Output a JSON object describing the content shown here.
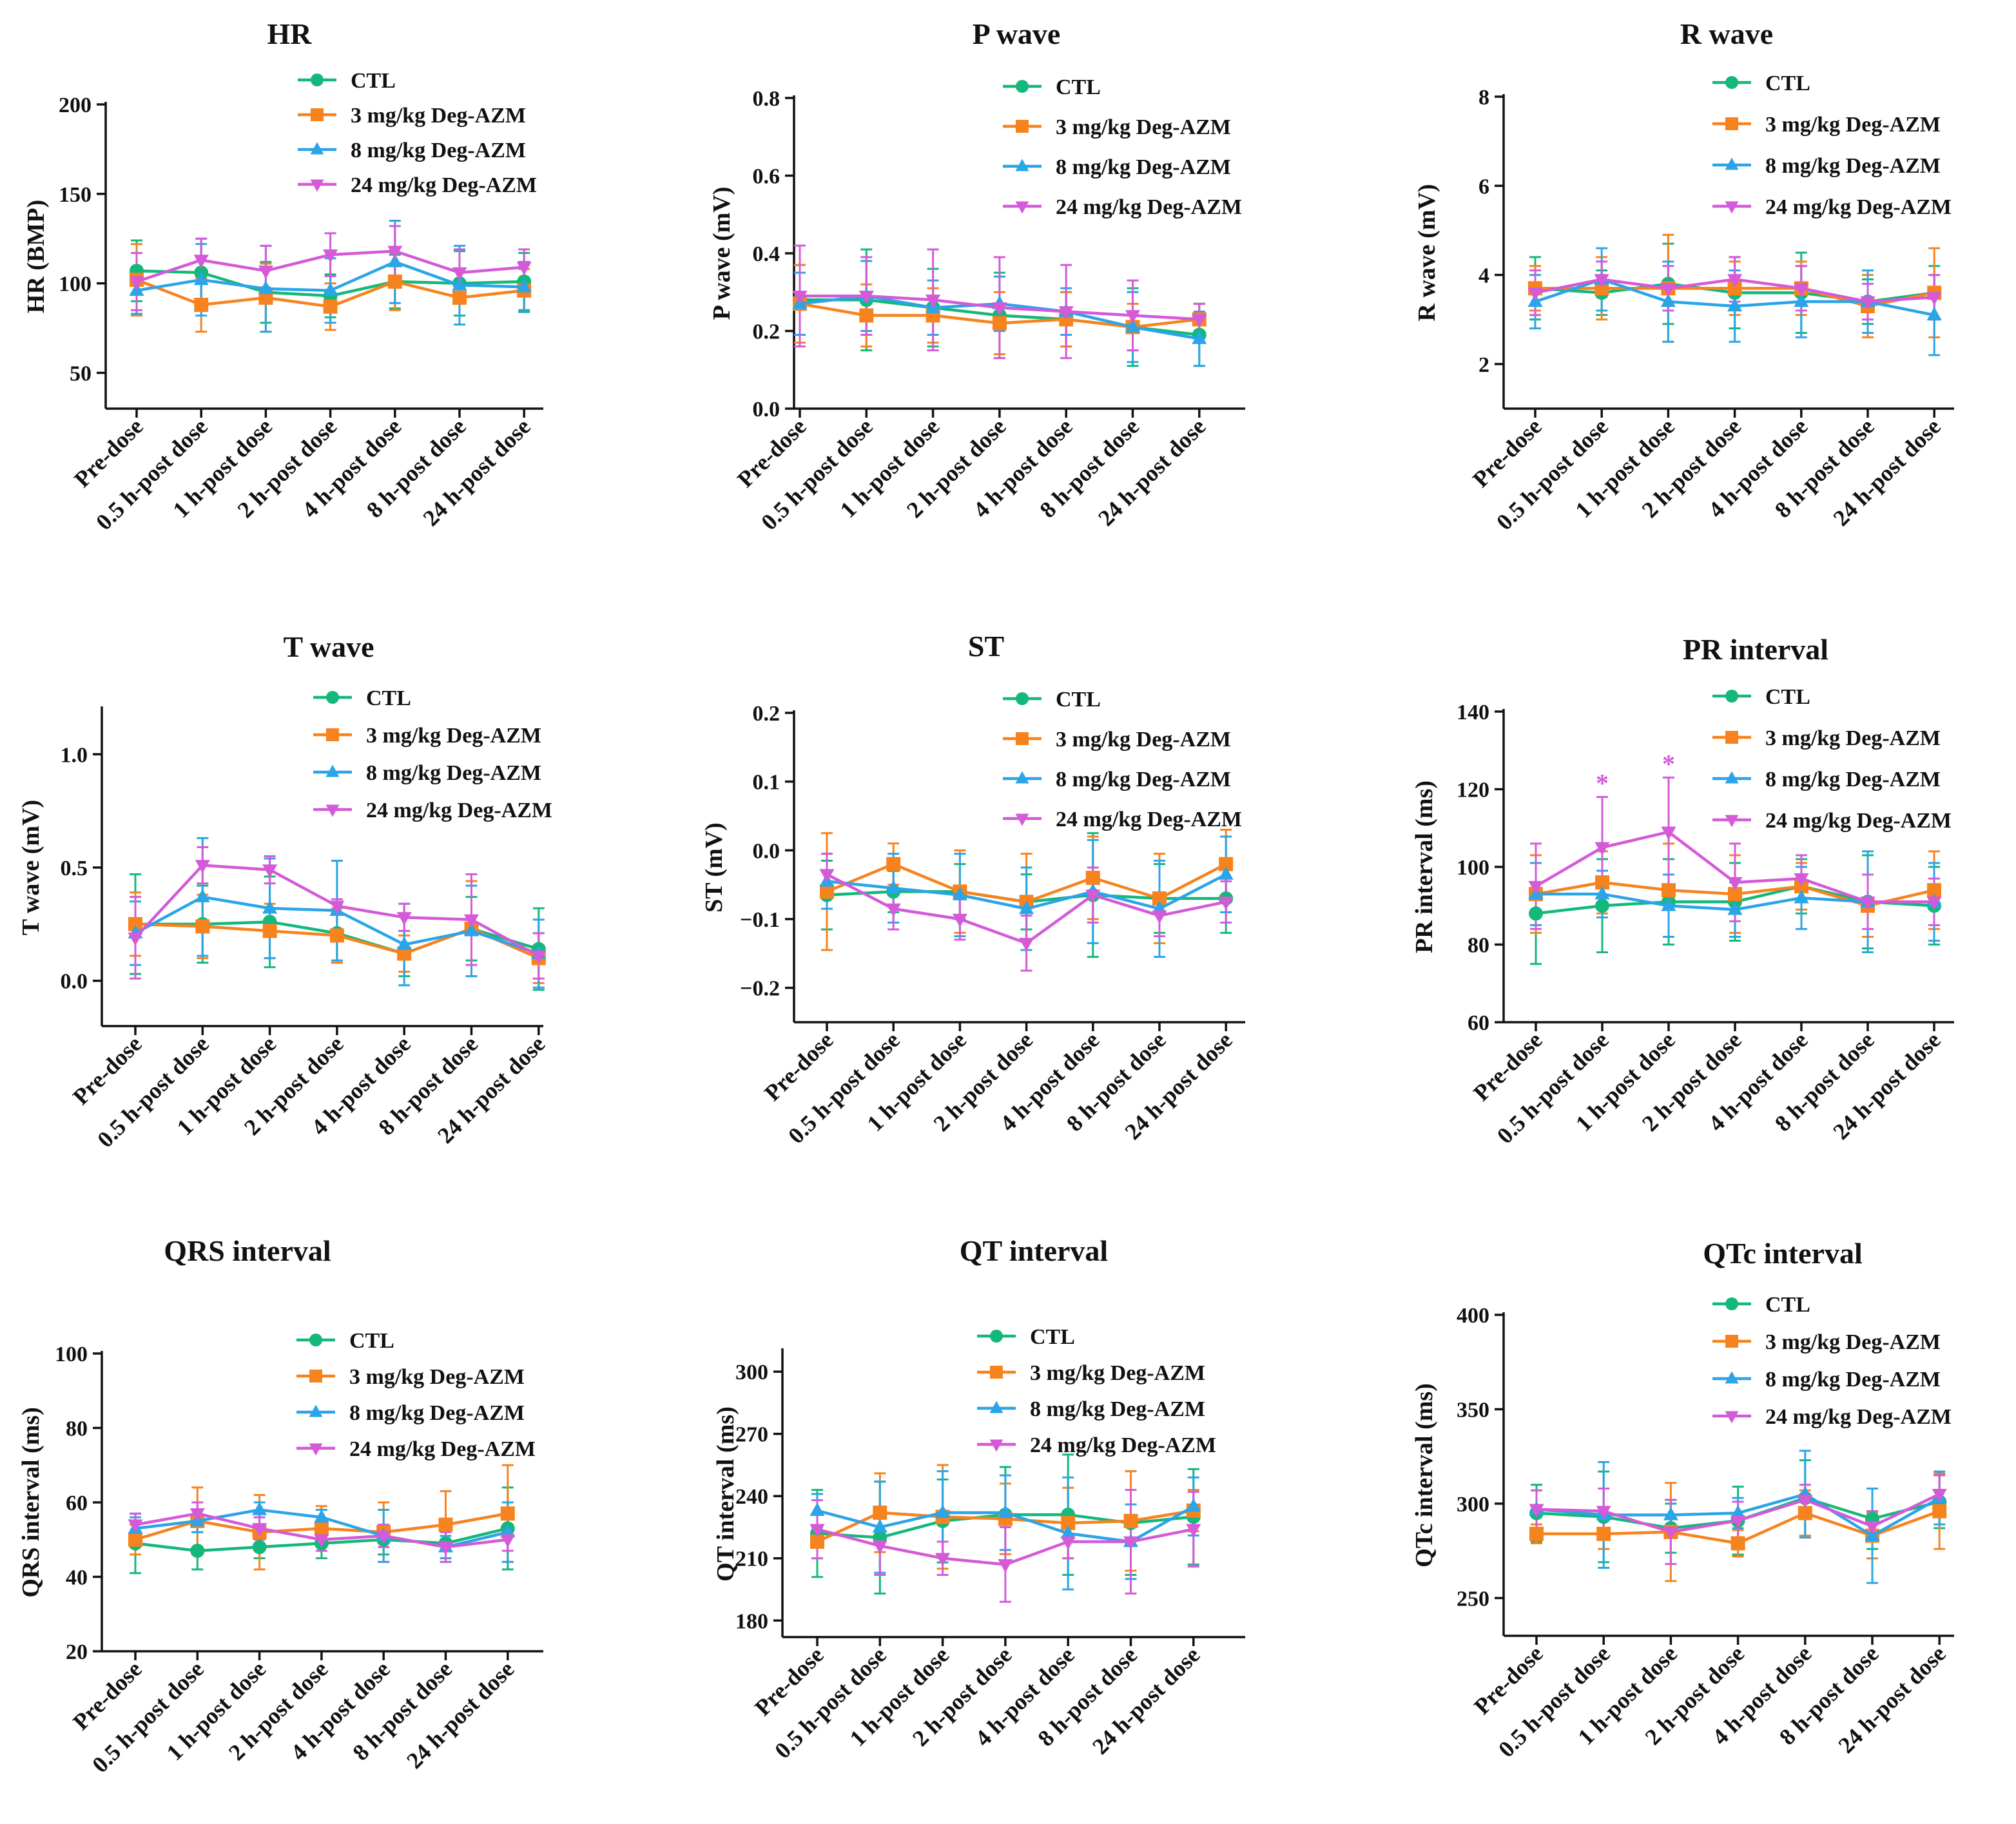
{
  "figure": {
    "x_categories": [
      "Pre-dose",
      "0.5 h-post dose",
      "1 h-post dose",
      "2 h-post dose",
      "4 h-post dose",
      "8 h-post dose",
      "24 h-post dose"
    ],
    "series_styles": [
      {
        "name": "CTL",
        "color": "#14b87a",
        "marker": "circle"
      },
      {
        "name": "3 mg/kg Deg-AZM",
        "color": "#f7831e",
        "marker": "square"
      },
      {
        "name": "8 mg/kg Deg-AZM",
        "color": "#2ba4e8",
        "marker": "triangle-up"
      },
      {
        "name": "24 mg/kg Deg-AZM",
        "color": "#d45ad8",
        "marker": "triangle-down"
      }
    ]
  },
  "chart_data": [
    {
      "type": "line",
      "title": "HR",
      "ylabel": "HR (BMP)",
      "ylim": [
        30,
        200
      ],
      "yticks": [
        50,
        100,
        150,
        200
      ],
      "yticklabels": [
        "50",
        "100",
        "150",
        "200"
      ],
      "series": [
        {
          "name": "CTL",
          "values": [
            107,
            106,
            95,
            93,
            101,
            100,
            101
          ],
          "errors": [
            17,
            19,
            17,
            12,
            15,
            18,
            16
          ]
        },
        {
          "name": "3 mg/kg Deg-AZM",
          "values": [
            102,
            88,
            92,
            87,
            101,
            92,
            96
          ],
          "errors": [
            20,
            15,
            19,
            13,
            16,
            15,
            12
          ]
        },
        {
          "name": "8 mg/kg Deg-AZM",
          "values": [
            96,
            102,
            97,
            96,
            112,
            99,
            98
          ],
          "errors": [
            13,
            20,
            24,
            18,
            23,
            22,
            14
          ]
        },
        {
          "name": "24 mg/kg Deg-AZM",
          "values": [
            101,
            113,
            107,
            116,
            118,
            106,
            109
          ],
          "errors": [
            16,
            12,
            14,
            12,
            14,
            13,
            10
          ]
        }
      ]
    },
    {
      "type": "line",
      "title": "P wave",
      "ylabel": "P wave (mV)",
      "ylim": [
        0,
        0.8
      ],
      "yticks": [
        0,
        0.2,
        0.4,
        0.6,
        0.8
      ],
      "yticklabels": [
        "0.0",
        "0.2",
        "0.4",
        "0.6",
        "0.8"
      ],
      "series": [
        {
          "name": "CTL",
          "values": [
            0.28,
            0.28,
            0.26,
            0.24,
            0.23,
            0.21,
            0.19
          ],
          "errors": [
            0.09,
            0.13,
            0.1,
            0.11,
            0.07,
            0.1,
            0.08
          ]
        },
        {
          "name": "3 mg/kg Deg-AZM",
          "values": [
            0.27,
            0.24,
            0.24,
            0.22,
            0.23,
            0.21,
            0.23
          ],
          "errors": [
            0.1,
            0.08,
            0.07,
            0.08,
            0.07,
            0.06,
            0.04
          ]
        },
        {
          "name": "8 mg/kg Deg-AZM",
          "values": [
            0.27,
            0.29,
            0.26,
            0.27,
            0.25,
            0.21,
            0.18
          ],
          "errors": [
            0.08,
            0.09,
            0.07,
            0.07,
            0.06,
            0.09,
            0.07
          ]
        },
        {
          "name": "24 mg/kg Deg-AZM",
          "values": [
            0.29,
            0.29,
            0.28,
            0.26,
            0.25,
            0.24,
            0.23
          ],
          "errors": [
            0.13,
            0.1,
            0.13,
            0.13,
            0.12,
            0.09,
            0.04
          ]
        }
      ]
    },
    {
      "type": "line",
      "title": "R wave",
      "ylabel": "R wave (mV)",
      "ylim": [
        1,
        8
      ],
      "yticks": [
        2,
        4,
        6,
        8
      ],
      "yticklabels": [
        "2",
        "4",
        "6",
        "8"
      ],
      "series": [
        {
          "name": "CTL",
          "values": [
            3.7,
            3.6,
            3.8,
            3.6,
            3.6,
            3.4,
            3.6
          ],
          "errors": [
            0.7,
            0.5,
            0.9,
            0.8,
            0.9,
            0.5,
            0.6
          ]
        },
        {
          "name": "3 mg/kg Deg-AZM",
          "values": [
            3.7,
            3.7,
            3.7,
            3.7,
            3.7,
            3.3,
            3.6
          ],
          "errors": [
            0.5,
            0.7,
            1.2,
            0.6,
            0.6,
            0.7,
            1.0
          ]
        },
        {
          "name": "8 mg/kg Deg-AZM",
          "values": [
            3.4,
            3.9,
            3.4,
            3.3,
            3.4,
            3.4,
            3.1
          ],
          "errors": [
            0.6,
            0.7,
            0.9,
            0.8,
            0.8,
            0.7,
            0.9
          ]
        },
        {
          "name": "24 mg/kg Deg-AZM",
          "values": [
            3.6,
            3.9,
            3.7,
            3.9,
            3.7,
            3.4,
            3.5
          ],
          "errors": [
            0.5,
            0.4,
            0.5,
            0.5,
            0.5,
            0.4,
            0.5
          ]
        }
      ]
    },
    {
      "type": "line",
      "title": "T wave",
      "ylabel": "T wave (mV)",
      "ylim": [
        -0.2,
        1.2
      ],
      "yticks": [
        0,
        0.5,
        1.0
      ],
      "yticklabels": [
        "0.0",
        "0.5",
        "1.0"
      ],
      "series": [
        {
          "name": "CTL",
          "values": [
            0.25,
            0.25,
            0.26,
            0.21,
            0.12,
            0.23,
            0.14
          ],
          "errors": [
            0.22,
            0.17,
            0.2,
            0.13,
            0.1,
            0.14,
            0.18
          ]
        },
        {
          "name": "3 mg/kg Deg-AZM",
          "values": [
            0.25,
            0.24,
            0.22,
            0.2,
            0.12,
            0.23,
            0.1
          ],
          "errors": [
            0.14,
            0.14,
            0.12,
            0.12,
            0.08,
            0.21,
            0.11
          ]
        },
        {
          "name": "8 mg/kg Deg-AZM",
          "values": [
            0.21,
            0.37,
            0.32,
            0.31,
            0.16,
            0.22,
            0.12
          ],
          "errors": [
            0.14,
            0.26,
            0.22,
            0.22,
            0.18,
            0.2,
            0.15
          ]
        },
        {
          "name": "24 mg/kg Deg-AZM",
          "values": [
            0.19,
            0.51,
            0.49,
            0.33,
            0.28,
            0.27,
            0.11
          ],
          "errors": [
            0.18,
            0.08,
            0.06,
            0.03,
            0.06,
            0.2,
            0.1
          ]
        }
      ]
    },
    {
      "type": "line",
      "title": "ST",
      "ylabel": "ST (mV)",
      "ylim": [
        -0.25,
        0.2
      ],
      "yticks": [
        -0.2,
        -0.1,
        0,
        0.1,
        0.2
      ],
      "yticklabels": [
        "−0.2",
        "−0.1",
        "0.0",
        "0.1",
        "0.2"
      ],
      "series": [
        {
          "name": "CTL",
          "values": [
            -0.065,
            -0.06,
            -0.06,
            -0.075,
            -0.065,
            -0.07,
            -0.07
          ],
          "errors": [
            0.05,
            0.03,
            0.04,
            0.04,
            0.09,
            0.05,
            0.05
          ]
        },
        {
          "name": "3 mg/kg Deg-AZM",
          "values": [
            -0.06,
            -0.02,
            -0.06,
            -0.075,
            -0.04,
            -0.07,
            -0.02
          ],
          "errors": [
            0.085,
            0.03,
            0.06,
            0.07,
            0.06,
            0.065,
            0.05
          ]
        },
        {
          "name": "8 mg/kg Deg-AZM",
          "values": [
            -0.045,
            -0.055,
            -0.065,
            -0.085,
            -0.06,
            -0.085,
            -0.035
          ],
          "errors": [
            0.04,
            0.05,
            0.06,
            0.06,
            0.075,
            0.07,
            0.055
          ]
        },
        {
          "name": "24 mg/kg Deg-AZM",
          "values": [
            -0.035,
            -0.085,
            -0.1,
            -0.135,
            -0.065,
            -0.095,
            -0.075
          ],
          "errors": [
            0.03,
            0.03,
            0.03,
            0.04,
            0.04,
            0.03,
            0.03
          ]
        }
      ]
    },
    {
      "type": "line",
      "title": "PR interval",
      "ylabel": "PR interval (ms)",
      "ylim": [
        60,
        140
      ],
      "yticks": [
        60,
        80,
        100,
        120,
        140
      ],
      "yticklabels": [
        "60",
        "80",
        "100",
        "120",
        "140"
      ],
      "annotations": [
        {
          "text": "*",
          "index": 1,
          "y": 121
        },
        {
          "text": "*",
          "index": 2,
          "y": 126
        }
      ],
      "series": [
        {
          "name": "CTL",
          "values": [
            88,
            90,
            91,
            91,
            95,
            91,
            90
          ],
          "errors": [
            13,
            12,
            11,
            10,
            7,
            12,
            10
          ]
        },
        {
          "name": "3 mg/kg Deg-AZM",
          "values": [
            93,
            96,
            94,
            93,
            95,
            90,
            94
          ],
          "errors": [
            10,
            8,
            12,
            10,
            6,
            8,
            10
          ]
        },
        {
          "name": "8 mg/kg Deg-AZM",
          "values": [
            93,
            93,
            90,
            89,
            92,
            91,
            91
          ],
          "errors": [
            8,
            6,
            8,
            7,
            8,
            13,
            10
          ]
        },
        {
          "name": "24 mg/kg Deg-AZM",
          "values": [
            95,
            105,
            109,
            96,
            97,
            91,
            91
          ],
          "errors": [
            11,
            13,
            14,
            10,
            6,
            7,
            6
          ]
        }
      ]
    },
    {
      "type": "line",
      "title": "QRS interval",
      "ylabel": "QRS interval (ms)",
      "ylim": [
        20,
        100
      ],
      "yticks": [
        20,
        40,
        60,
        80,
        100
      ],
      "yticklabels": [
        "20",
        "40",
        "60",
        "80",
        "100"
      ],
      "series": [
        {
          "name": "CTL",
          "values": [
            49,
            47,
            48,
            49,
            50,
            49,
            53
          ],
          "errors": [
            8,
            5,
            3,
            4,
            4,
            5,
            11
          ]
        },
        {
          "name": "3 mg/kg Deg-AZM",
          "values": [
            50,
            55,
            52,
            53,
            52,
            54,
            57
          ],
          "errors": [
            4,
            9,
            10,
            6,
            8,
            9,
            13
          ]
        },
        {
          "name": "8 mg/kg Deg-AZM",
          "values": [
            53,
            55,
            58,
            56,
            51,
            48,
            52
          ],
          "errors": [
            3,
            3,
            2,
            2,
            7,
            3,
            8
          ]
        },
        {
          "name": "24 mg/kg Deg-AZM",
          "values": [
            54,
            57,
            53,
            50,
            51,
            48,
            50
          ],
          "errors": [
            3,
            3,
            3,
            3,
            3,
            4,
            3
          ]
        }
      ]
    },
    {
      "type": "line",
      "title": "QT interval",
      "ylabel": "QT interval (ms)",
      "ylim": [
        172,
        310
      ],
      "yticks": [
        180,
        210,
        240,
        270,
        300
      ],
      "yticklabels": [
        "180",
        "210",
        "240",
        "270",
        "300"
      ],
      "series": [
        {
          "name": "CTL",
          "values": [
            222,
            220,
            228,
            231,
            231,
            227,
            230
          ],
          "errors": [
            21,
            27,
            20,
            23,
            29,
            25,
            23
          ]
        },
        {
          "name": "3 mg/kg Deg-AZM",
          "values": [
            218,
            232,
            230,
            229,
            227,
            228,
            233
          ],
          "errors": [
            8,
            19,
            25,
            17,
            17,
            24,
            10
          ]
        },
        {
          "name": "8 mg/kg Deg-AZM",
          "values": [
            233,
            225,
            232,
            232,
            222,
            218,
            235
          ],
          "errors": [
            8,
            22,
            20,
            18,
            27,
            18,
            14
          ]
        },
        {
          "name": "24 mg/kg Deg-AZM",
          "values": [
            224,
            216,
            210,
            207,
            218,
            218,
            224
          ],
          "errors": [
            14,
            14,
            8,
            18,
            8,
            25,
            18
          ]
        }
      ]
    },
    {
      "type": "line",
      "title": "QTc interval",
      "ylabel": "QTc interval (ms)",
      "ylim": [
        230,
        400
      ],
      "yticks": [
        250,
        300,
        350,
        400
      ],
      "yticklabels": [
        "250",
        "300",
        "350",
        "400"
      ],
      "series": [
        {
          "name": "CTL",
          "values": [
            295,
            293,
            287,
            291,
            303,
            292,
            301
          ],
          "errors": [
            15,
            24,
            13,
            18,
            20,
            16,
            14
          ]
        },
        {
          "name": "3 mg/kg Deg-AZM",
          "values": [
            284,
            284,
            285,
            279,
            295,
            283,
            296
          ],
          "errors": [
            5,
            8,
            26,
            7,
            12,
            12,
            20
          ]
        },
        {
          "name": "8 mg/kg Deg-AZM",
          "values": [
            297,
            294,
            294,
            295,
            305,
            283,
            303
          ],
          "errors": [
            10,
            28,
            8,
            8,
            23,
            25,
            14
          ]
        },
        {
          "name": "24 mg/kg Deg-AZM",
          "values": [
            297,
            296,
            285,
            291,
            302,
            288,
            305
          ],
          "errors": [
            10,
            12,
            17,
            10,
            8,
            8,
            10
          ]
        }
      ]
    }
  ]
}
